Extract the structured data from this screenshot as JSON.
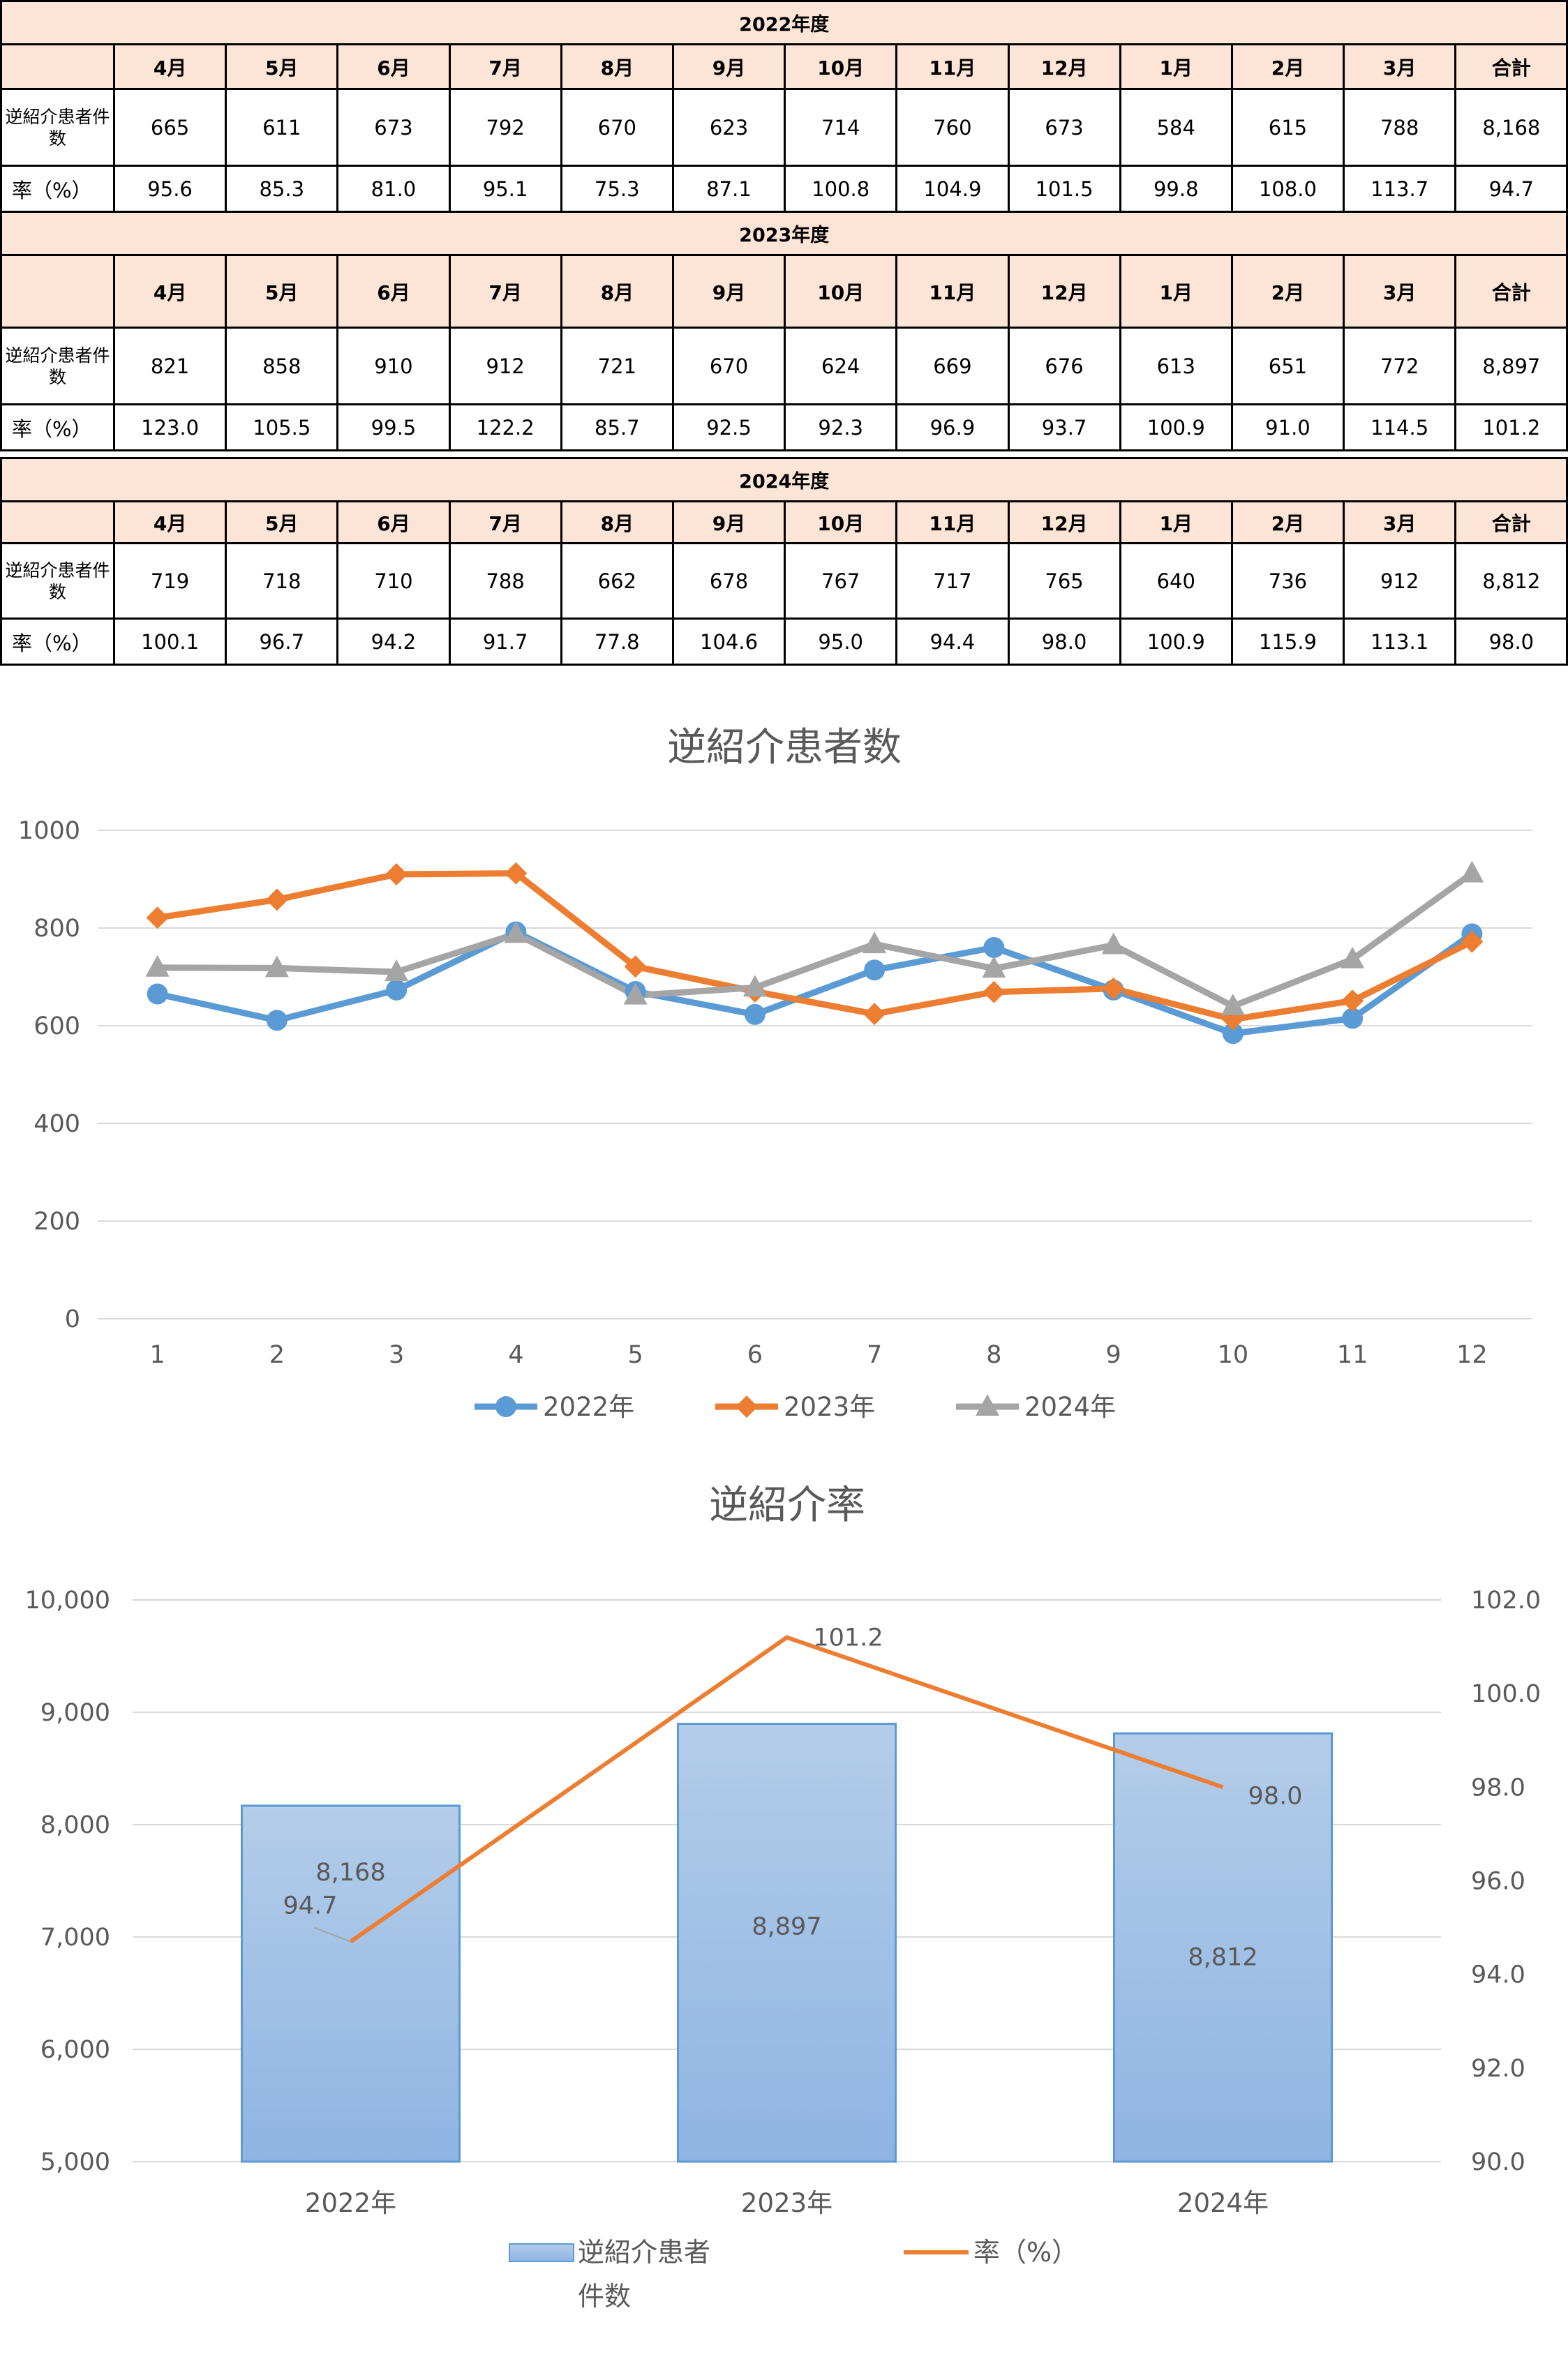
{
  "tables": [
    {
      "title": "2022年度",
      "months": [
        "4月",
        "5月",
        "6月",
        "7月",
        "8月",
        "9月",
        "10月",
        "11月",
        "12月",
        "1月",
        "2月",
        "3月",
        "合計"
      ],
      "row1_label": "逆紹介患者件数",
      "row1": [
        "665",
        "611",
        "673",
        "792",
        "670",
        "623",
        "714",
        "760",
        "673",
        "584",
        "615",
        "788",
        "8,168"
      ],
      "row2_label": "率（%）",
      "row2": [
        "95.6",
        "85.3",
        "81.0",
        "95.1",
        "75.3",
        "87.1",
        "100.8",
        "104.9",
        "101.5",
        "99.8",
        "108.0",
        "113.7",
        "94.7"
      ]
    },
    {
      "title": "2023年度",
      "months": [
        "4月",
        "5月",
        "6月",
        "7月",
        "8月",
        "9月",
        "10月",
        "11月",
        "12月",
        "1月",
        "2月",
        "3月",
        "合計"
      ],
      "row1_label": "逆紹介患者件数",
      "row1": [
        "821",
        "858",
        "910",
        "912",
        "721",
        "670",
        "624",
        "669",
        "676",
        "613",
        "651",
        "772",
        "8,897"
      ],
      "row2_label": "率（%）",
      "row2": [
        "123.0",
        "105.5",
        "99.5",
        "122.2",
        "85.7",
        "92.5",
        "92.3",
        "96.9",
        "93.7",
        "100.9",
        "91.0",
        "114.5",
        "101.2"
      ]
    },
    {
      "title": "2024年度",
      "months": [
        "4月",
        "5月",
        "6月",
        "7月",
        "8月",
        "9月",
        "10月",
        "11月",
        "12月",
        "1月",
        "2月",
        "3月",
        "合計"
      ],
      "row1_label": "逆紹介患者件数",
      "row1": [
        "719",
        "718",
        "710",
        "788",
        "662",
        "678",
        "767",
        "717",
        "765",
        "640",
        "736",
        "912",
        "8,812"
      ],
      "row2_label": "率（%）",
      "row2": [
        "100.1",
        "96.7",
        "94.2",
        "91.7",
        "77.8",
        "104.6",
        "95.0",
        "94.4",
        "98.0",
        "100.9",
        "115.9",
        "113.1",
        "98.0"
      ]
    }
  ],
  "chart_data": [
    {
      "type": "line",
      "title": "逆紹介患者数",
      "categories": [
        "1",
        "2",
        "3",
        "4",
        "5",
        "6",
        "7",
        "8",
        "9",
        "10",
        "11",
        "12"
      ],
      "series": [
        {
          "name": "2022年",
          "color": "#5b9bd5",
          "marker": "circle",
          "values": [
            665,
            611,
            673,
            792,
            670,
            623,
            714,
            760,
            673,
            584,
            615,
            788
          ]
        },
        {
          "name": "2023年",
          "color": "#ed7d31",
          "marker": "diamond",
          "values": [
            821,
            858,
            910,
            912,
            721,
            670,
            624,
            669,
            676,
            613,
            651,
            772
          ]
        },
        {
          "name": "2024年",
          "color": "#a5a5a5",
          "marker": "triangle",
          "values": [
            719,
            718,
            710,
            788,
            662,
            678,
            767,
            717,
            765,
            640,
            736,
            912
          ]
        }
      ],
      "ylim": [
        0,
        1000
      ],
      "yticks": [
        "0",
        "200",
        "400",
        "600",
        "800",
        "1000"
      ],
      "grid": true,
      "legend": "bottom"
    },
    {
      "type": "bar+line",
      "title": "逆紹介率",
      "categories": [
        "2022年",
        "2023年",
        "2024年"
      ],
      "bar_series": {
        "name": "逆紹介患者件数",
        "legend_line1": "逆紹介患者",
        "legend_line2": "件数",
        "color": "#9dc3e6",
        "values": [
          8168,
          8897,
          8812
        ],
        "labels": [
          "8,168",
          "8,897",
          "8,812"
        ]
      },
      "line_series": {
        "name": "率（%）",
        "color": "#ed7d31",
        "values": [
          94.7,
          101.2,
          98.0
        ],
        "labels": [
          "94.7",
          "101.2",
          "98.0"
        ]
      },
      "ylim_left": [
        5000,
        10000
      ],
      "yticks_left": [
        "5,000",
        "6,000",
        "7,000",
        "8,000",
        "9,000",
        "10,000"
      ],
      "ylim_right": [
        90,
        102
      ],
      "yticks_right": [
        "90.0",
        "92.0",
        "94.0",
        "96.0",
        "98.0",
        "100.0",
        "102.0"
      ],
      "grid": true,
      "legend": "bottom"
    }
  ]
}
